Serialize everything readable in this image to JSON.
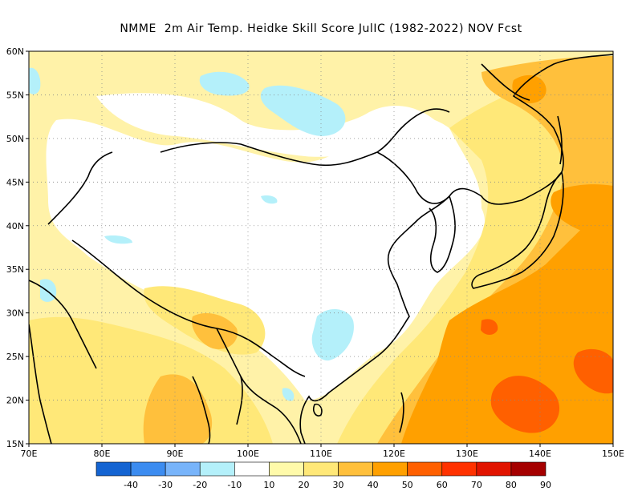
{
  "title": "NMME  2m Air Temp. Heidke Skill Score JulIC (1982-2022) NOV Fcst",
  "map": {
    "lon_range": [
      70,
      150
    ],
    "lat_range": [
      15,
      60
    ],
    "lon_ticks": [
      "70E",
      "80E",
      "90E",
      "100E",
      "110E",
      "120E",
      "130E",
      "140E",
      "150E"
    ],
    "lat_ticks": [
      "15N",
      "20N",
      "25N",
      "30N",
      "35N",
      "40N",
      "45N",
      "50N",
      "55N",
      "60N"
    ],
    "grid": "dotted"
  },
  "colorbar": {
    "colors": [
      "#1464d2",
      "#3c8cf0",
      "#78b4fa",
      "#b4f0fa",
      "#ffffff",
      "#fffaaa",
      "#ffe878",
      "#ffc03c",
      "#ffa000",
      "#ff6000",
      "#ff3200",
      "#e11400",
      "#a50000"
    ],
    "labels": [
      "-40",
      "-30",
      "-20",
      "-10",
      "10",
      "20",
      "30",
      "40",
      "50",
      "60",
      "70",
      "80",
      "90"
    ]
  }
}
